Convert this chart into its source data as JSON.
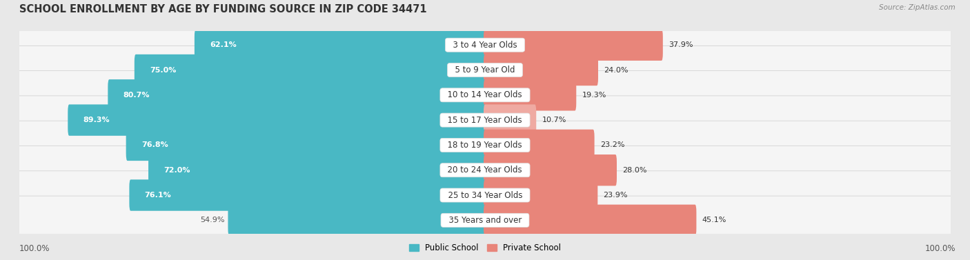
{
  "title": "SCHOOL ENROLLMENT BY AGE BY FUNDING SOURCE IN ZIP CODE 34471",
  "source": "Source: ZipAtlas.com",
  "categories": [
    "3 to 4 Year Olds",
    "5 to 9 Year Old",
    "10 to 14 Year Olds",
    "15 to 17 Year Olds",
    "18 to 19 Year Olds",
    "20 to 24 Year Olds",
    "25 to 34 Year Olds",
    "35 Years and over"
  ],
  "public_values": [
    62.1,
    75.0,
    80.7,
    89.3,
    76.8,
    72.0,
    76.1,
    54.9
  ],
  "private_values": [
    37.9,
    24.0,
    19.3,
    10.7,
    23.2,
    28.0,
    23.9,
    45.1
  ],
  "public_color": "#49b8c4",
  "private_color": "#e8857a",
  "private_color_light": "#efaaa2",
  "public_label": "Public School",
  "private_label": "Private School",
  "background_color": "#e8e8e8",
  "row_bg_color": "#f5f5f5",
  "axis_label_left": "100.0%",
  "axis_label_right": "100.0%",
  "title_fontsize": 10.5,
  "label_fontsize": 8.5,
  "value_fontsize": 8,
  "category_fontsize": 8.5,
  "source_fontsize": 7.5
}
